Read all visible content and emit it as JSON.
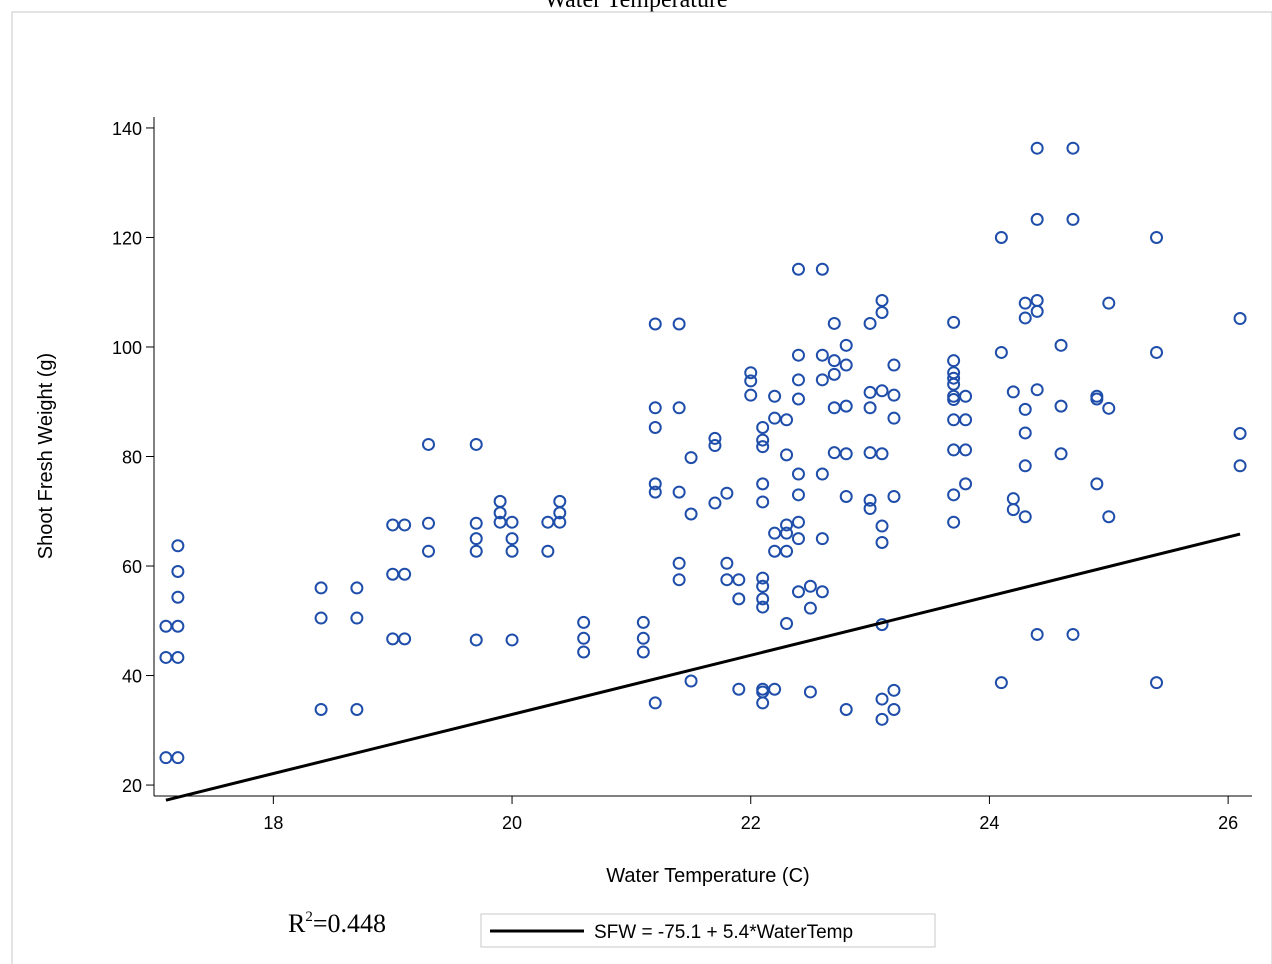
{
  "chart_data": {
    "type": "scatter",
    "title": "Water Temperature",
    "xlabel": "Water Temperature (C)",
    "ylabel": "Shoot Fresh Weight (g)",
    "xlim": [
      17.0,
      26.2
    ],
    "ylim": [
      18,
      142
    ],
    "xticks": [
      18,
      20,
      22,
      24,
      26
    ],
    "yticks": [
      20,
      40,
      60,
      80,
      100,
      120,
      140
    ],
    "grid": false,
    "marker_color": "#1f4eaa",
    "line_color": "#000000",
    "fit_line": {
      "intercept": -75.1,
      "slope": 5.4,
      "x_range": [
        17.1,
        26.1
      ]
    },
    "legend": {
      "label": "SFW = -75.1 + 5.4*WaterTemp",
      "placement": "bottom"
    },
    "r_squared": {
      "prefix": "R",
      "superscript": "2",
      "value": "=0.448"
    },
    "series": [
      {
        "points": [
          [
            17.1,
            49
          ],
          [
            17.2,
            49
          ],
          [
            17.1,
            43.3
          ],
          [
            17.2,
            43.3
          ],
          [
            17.1,
            25
          ],
          [
            17.2,
            25
          ],
          [
            17.2,
            63.7
          ],
          [
            17.2,
            59
          ],
          [
            17.2,
            54.3
          ],
          [
            18.4,
            56
          ],
          [
            18.4,
            50.5
          ],
          [
            18.4,
            33.8
          ],
          [
            18.7,
            56
          ],
          [
            18.7,
            50.5
          ],
          [
            18.7,
            33.8
          ],
          [
            19.0,
            67.5
          ],
          [
            19.1,
            67.5
          ],
          [
            19.0,
            58.5
          ],
          [
            19.1,
            58.5
          ],
          [
            19.0,
            46.7
          ],
          [
            19.1,
            46.7
          ],
          [
            19.3,
            82.2
          ],
          [
            19.3,
            67.8
          ],
          [
            19.3,
            62.7
          ],
          [
            19.7,
            82.2
          ],
          [
            19.7,
            67.8
          ],
          [
            19.7,
            65
          ],
          [
            19.7,
            62.7
          ],
          [
            19.7,
            46.5
          ],
          [
            19.9,
            71.8
          ],
          [
            19.9,
            69.7
          ],
          [
            19.9,
            68
          ],
          [
            20.0,
            68
          ],
          [
            20.0,
            65
          ],
          [
            20.0,
            62.7
          ],
          [
            20.0,
            46.5
          ],
          [
            20.3,
            68
          ],
          [
            20.3,
            62.7
          ],
          [
            20.4,
            71.8
          ],
          [
            20.4,
            69.7
          ],
          [
            20.4,
            68
          ],
          [
            20.6,
            49.7
          ],
          [
            20.6,
            46.8
          ],
          [
            20.6,
            44.3
          ],
          [
            21.1,
            49.7
          ],
          [
            21.1,
            46.8
          ],
          [
            21.1,
            44.3
          ],
          [
            21.2,
            104.2
          ],
          [
            21.2,
            88.9
          ],
          [
            21.2,
            85.3
          ],
          [
            21.2,
            75
          ],
          [
            21.2,
            73.5
          ],
          [
            21.2,
            35
          ],
          [
            21.4,
            104.2
          ],
          [
            21.4,
            88.9
          ],
          [
            21.4,
            73.5
          ],
          [
            21.4,
            60.5
          ],
          [
            21.4,
            57.5
          ],
          [
            21.5,
            79.8
          ],
          [
            21.5,
            69.5
          ],
          [
            21.5,
            39
          ],
          [
            21.7,
            83.3
          ],
          [
            21.7,
            82
          ],
          [
            21.7,
            71.5
          ],
          [
            21.8,
            73.3
          ],
          [
            21.8,
            60.5
          ],
          [
            21.8,
            57.5
          ],
          [
            21.9,
            57.5
          ],
          [
            21.9,
            54
          ],
          [
            21.9,
            37.5
          ],
          [
            22.0,
            95.3
          ],
          [
            22.0,
            93.8
          ],
          [
            22.0,
            91.2
          ],
          [
            22.1,
            85.3
          ],
          [
            22.1,
            83
          ],
          [
            22.1,
            81.8
          ],
          [
            22.1,
            75
          ],
          [
            22.1,
            71.7
          ],
          [
            22.1,
            57.8
          ],
          [
            22.1,
            56.3
          ],
          [
            22.1,
            54
          ],
          [
            22.1,
            52.5
          ],
          [
            22.1,
            37.5
          ],
          [
            22.1,
            37
          ],
          [
            22.1,
            35
          ],
          [
            22.2,
            91
          ],
          [
            22.2,
            87
          ],
          [
            22.2,
            66
          ],
          [
            22.2,
            62.7
          ],
          [
            22.2,
            37.5
          ],
          [
            22.3,
            86.7
          ],
          [
            22.3,
            80.3
          ],
          [
            22.3,
            67.5
          ],
          [
            22.3,
            66
          ],
          [
            22.3,
            62.7
          ],
          [
            22.3,
            49.5
          ],
          [
            22.4,
            114.2
          ],
          [
            22.4,
            98.5
          ],
          [
            22.4,
            94
          ],
          [
            22.4,
            90.5
          ],
          [
            22.4,
            76.8
          ],
          [
            22.4,
            73
          ],
          [
            22.4,
            68
          ],
          [
            22.4,
            65
          ],
          [
            22.4,
            55.3
          ],
          [
            22.5,
            56.3
          ],
          [
            22.5,
            52.3
          ],
          [
            22.5,
            37
          ],
          [
            22.6,
            114.2
          ],
          [
            22.6,
            98.5
          ],
          [
            22.6,
            94
          ],
          [
            22.6,
            76.8
          ],
          [
            22.6,
            65
          ],
          [
            22.6,
            55.3
          ],
          [
            22.7,
            104.3
          ],
          [
            22.7,
            97.5
          ],
          [
            22.7,
            95
          ],
          [
            22.7,
            88.9
          ],
          [
            22.7,
            80.7
          ],
          [
            22.8,
            100.3
          ],
          [
            22.8,
            96.7
          ],
          [
            22.8,
            89.2
          ],
          [
            22.8,
            80.5
          ],
          [
            22.8,
            72.7
          ],
          [
            22.8,
            33.8
          ],
          [
            23.0,
            104.3
          ],
          [
            23.0,
            91.7
          ],
          [
            23.0,
            88.9
          ],
          [
            23.0,
            80.7
          ],
          [
            23.0,
            72
          ],
          [
            23.0,
            70.5
          ],
          [
            23.1,
            108.5
          ],
          [
            23.1,
            106.3
          ],
          [
            23.1,
            92
          ],
          [
            23.1,
            80.5
          ],
          [
            23.1,
            67.3
          ],
          [
            23.1,
            64.3
          ],
          [
            23.1,
            49.3
          ],
          [
            23.1,
            35.7
          ],
          [
            23.1,
            32
          ],
          [
            23.2,
            96.7
          ],
          [
            23.2,
            91.2
          ],
          [
            23.2,
            87
          ],
          [
            23.2,
            72.7
          ],
          [
            23.2,
            37.3
          ],
          [
            23.2,
            33.8
          ],
          [
            23.7,
            104.5
          ],
          [
            23.7,
            97.5
          ],
          [
            23.7,
            95.3
          ],
          [
            23.7,
            94.3
          ],
          [
            23.7,
            93.2
          ],
          [
            23.7,
            91
          ],
          [
            23.7,
            90.4
          ],
          [
            23.7,
            86.7
          ],
          [
            23.7,
            81.2
          ],
          [
            23.7,
            73
          ],
          [
            23.7,
            68
          ],
          [
            23.8,
            91
          ],
          [
            23.8,
            86.7
          ],
          [
            23.8,
            81.2
          ],
          [
            23.8,
            75
          ],
          [
            24.1,
            120
          ],
          [
            24.1,
            99
          ],
          [
            24.1,
            38.7
          ],
          [
            24.2,
            91.8
          ],
          [
            24.2,
            72.3
          ],
          [
            24.2,
            70.3
          ],
          [
            24.3,
            108
          ],
          [
            24.3,
            105.3
          ],
          [
            24.3,
            88.6
          ],
          [
            24.3,
            84.3
          ],
          [
            24.3,
            78.3
          ],
          [
            24.3,
            69
          ],
          [
            24.4,
            136.3
          ],
          [
            24.4,
            123.3
          ],
          [
            24.4,
            108.5
          ],
          [
            24.4,
            106.5
          ],
          [
            24.4,
            92.2
          ],
          [
            24.4,
            47.5
          ],
          [
            24.6,
            100.3
          ],
          [
            24.6,
            89.2
          ],
          [
            24.6,
            80.5
          ],
          [
            24.7,
            136.3
          ],
          [
            24.7,
            123.3
          ],
          [
            24.7,
            47.5
          ],
          [
            24.9,
            91
          ],
          [
            24.9,
            90.5
          ],
          [
            24.9,
            75
          ],
          [
            25.0,
            108
          ],
          [
            25.0,
            88.8
          ],
          [
            25.0,
            69
          ],
          [
            25.4,
            120
          ],
          [
            25.4,
            99
          ],
          [
            25.4,
            38.7
          ],
          [
            26.1,
            105.2
          ],
          [
            26.1,
            84.2
          ],
          [
            26.1,
            78.3
          ]
        ]
      }
    ]
  }
}
